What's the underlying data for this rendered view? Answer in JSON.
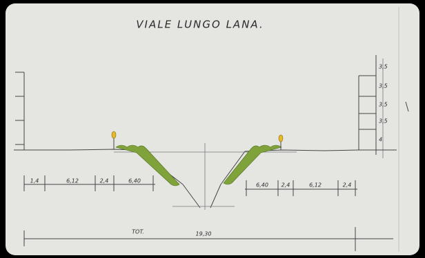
{
  "title": "VIALE LUNGO LANA.",
  "left_dimensions": [
    "1,4",
    "6,12",
    "2,4",
    "6,40"
  ],
  "right_dimensions": [
    "6,40",
    "2,4",
    "6,12",
    "2,4"
  ],
  "building_heights": [
    "3,5",
    "3,5",
    "3,5",
    "3,5",
    "4"
  ],
  "total": {
    "label": "TOT.",
    "value": "19,30"
  }
}
